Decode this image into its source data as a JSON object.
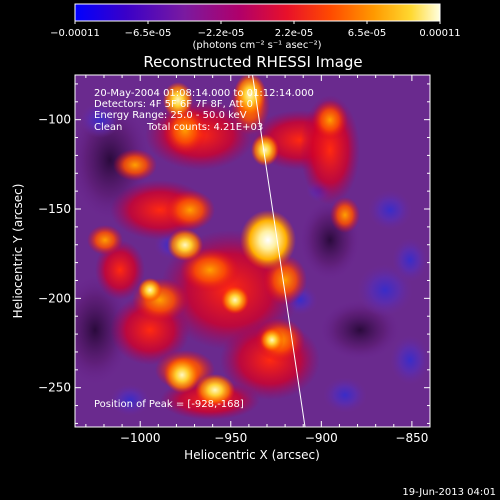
{
  "colors": {
    "background": "#000000",
    "text": "#ffffff",
    "colormap": [
      "#0000ff",
      "#3a00c8",
      "#6e1e96",
      "#a0006e",
      "#e0002a",
      "#ff3300",
      "#ff8000",
      "#ffc800",
      "#ffffc8"
    ]
  },
  "colorbar": {
    "ticks": [
      "-0.00011",
      "-6.5e-05",
      "-2.2e-05",
      "2.2e-05",
      "6.5e-05",
      "0.00011"
    ],
    "unit_label": "(photons cm⁻² s⁻¹ asec⁻²)"
  },
  "chart_data": {
    "type": "heatmap",
    "title": "Reconstructed RHESSI Image",
    "xlabel": "Heliocentric X (arcsec)",
    "ylabel": "Heliocentric Y (arcsec)",
    "xlim": [
      -1036,
      -840
    ],
    "ylim": [
      -272,
      -75
    ],
    "xticks": [
      -1000,
      -950,
      -900,
      -850
    ],
    "yticks": [
      -100,
      -150,
      -200,
      -250
    ],
    "value_range": [
      -0.00011,
      0.00011
    ],
    "annotations": {
      "time_range": "20-May-2004 01:08:14.000 to 01:12:14.000",
      "detectors": "Detectors: 4F 5F 6F 7F 8F, Att 0",
      "energy": "Energy Range: 25.0 - 50.0 keV",
      "method": "Clean",
      "counts": "Total counts: 4.21E+03",
      "peak": "Position of Peak = [-928,-168]"
    },
    "peak": {
      "x": -928,
      "y": -168
    },
    "limb_line": [
      [
        -938,
        -75
      ],
      [
        -909,
        -272
      ]
    ]
  },
  "footer": {
    "timestamp": "19-Jun-2013 04:01"
  }
}
